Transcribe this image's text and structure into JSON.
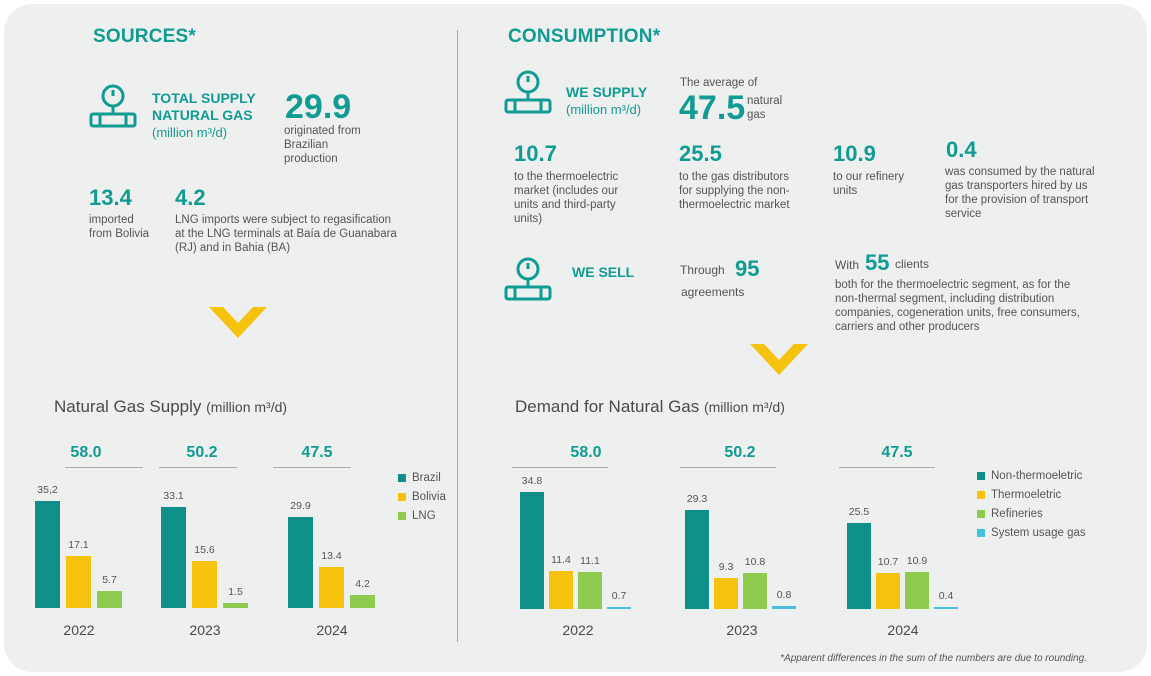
{
  "colors": {
    "teal": "#109b93",
    "brazil": "#0f8f89",
    "bolivia": "#f5c20d",
    "lng": "#8fcb4f",
    "non_thermo": "#0f8f89",
    "thermo": "#f5c20d",
    "refineries": "#8fcb4f",
    "system": "#47c0df",
    "chevron": "#f5c20d"
  },
  "sources": {
    "title": "SOURCES*",
    "total_label_1": "TOTAL SUPPLY",
    "total_label_2": "NATURAL GAS",
    "total_unit": "(million m³/d)",
    "total_value": "29.9",
    "total_text_1": "originated from",
    "total_text_2": "Brazilian",
    "total_text_3": "production",
    "bolivia_value": "13.4",
    "bolivia_text_1": "imported",
    "bolivia_text_2": "from Bolivia",
    "lng_value": "4.2",
    "lng_text_1": "LNG imports were subject to regasification",
    "lng_text_2": "at the LNG terminals at Baía de Guanabara",
    "lng_text_3": "(RJ) and in Bahia (BA)"
  },
  "consumption": {
    "title": "CONSUMPTION*",
    "supply_label": "WE SUPPLY",
    "supply_unit": "(million m³/d)",
    "avg_text": "The average of",
    "avg_value": "47.5",
    "avg_suffix_1": "natural",
    "avg_suffix_2": "gas",
    "items": [
      {
        "value": "10.7",
        "lines": [
          "to the thermoelectric",
          "market (includes our",
          "units and third-party",
          "units)"
        ]
      },
      {
        "value": "25.5",
        "lines": [
          "to the gas distributors",
          "for supplying the non-",
          "thermoelectric market"
        ]
      },
      {
        "value": "10.9",
        "lines": [
          "to our refinery",
          "units"
        ]
      },
      {
        "value": "0.4",
        "lines": [
          "was consumed by the natural",
          "gas transporters hired by us",
          "for the provision of transport",
          "service"
        ]
      }
    ],
    "sell_label": "WE SELL",
    "through_text": "Through",
    "agreements_value": "95",
    "agreements_text": "agreements",
    "with_text": "With",
    "clients_value": "55",
    "clients_text": "clients",
    "clients_lines": [
      "both for the thermoelectric segment, as for the",
      "non-thermal segment, including distribution",
      "companies, cogeneration units, free consumers,",
      "carriers and other producers"
    ]
  },
  "footnote": "*Apparent differences in the sum of the numbers are due to rounding.",
  "chart_data": [
    {
      "type": "bar",
      "title": "Natural Gas Supply",
      "unit": "(million m³/d)",
      "categories": [
        "2022",
        "2023",
        "2024"
      ],
      "totals": [
        "58.0",
        "50.2",
        "47.5"
      ],
      "series": [
        {
          "name": "Brazil",
          "values": [
            35.2,
            33.1,
            29.9
          ],
          "labels": [
            "35,2",
            "33.1",
            "29.9"
          ]
        },
        {
          "name": "Bolivia",
          "values": [
            17.1,
            15.6,
            13.4
          ],
          "labels": [
            "17.1",
            "15.6",
            "13.4"
          ]
        },
        {
          "name": "LNG",
          "values": [
            5.7,
            1.5,
            4.2
          ],
          "labels": [
            "5.7",
            "1.5",
            "4.2"
          ]
        }
      ],
      "ylim": [
        0,
        35.2
      ]
    },
    {
      "type": "bar",
      "title": "Demand for Natural Gas",
      "unit": "(million m³/d)",
      "categories": [
        "2022",
        "2023",
        "2024"
      ],
      "totals": [
        "58.0",
        "50.2",
        "47.5"
      ],
      "series": [
        {
          "name": "Non-thermoeletric",
          "values": [
            34.8,
            29.3,
            25.5
          ],
          "labels": [
            "34.8",
            "29.3",
            "25.5"
          ]
        },
        {
          "name": "Thermoeletric",
          "values": [
            11.4,
            9.3,
            10.7
          ],
          "labels": [
            "11.4",
            "9.3",
            "10.7"
          ]
        },
        {
          "name": "Refineries",
          "values": [
            11.1,
            10.8,
            10.9
          ],
          "labels": [
            "11.1",
            "10.8",
            "10.9"
          ]
        },
        {
          "name": "System usage gas",
          "values": [
            0.7,
            0.8,
            0.4
          ],
          "labels": [
            "0.7",
            "0.8",
            "0.4"
          ]
        }
      ],
      "ylim": [
        0,
        34.8
      ]
    }
  ]
}
